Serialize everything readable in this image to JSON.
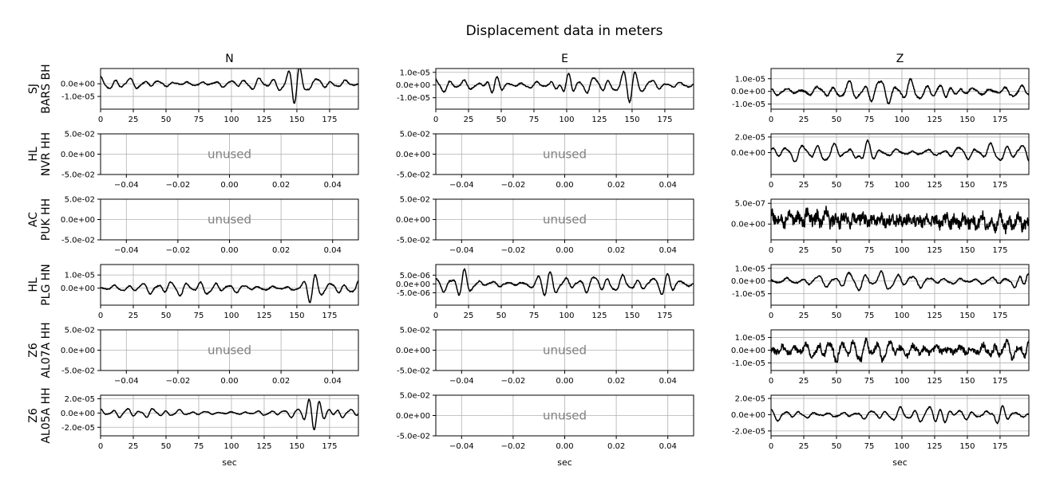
{
  "title": "Displacement data in meters",
  "columns": [
    "N",
    "E",
    "Z"
  ],
  "xlabel": "sec",
  "unused_label": "unused",
  "colors": {
    "trace": "#000000",
    "grid": "#b0b0b0",
    "unused_text": "#808080"
  },
  "chart_data": {
    "type": "line",
    "title": "Displacement data in meters",
    "xlabel": "sec",
    "grid": true,
    "rows": [
      {
        "station": "SJ\nBARS BH",
        "panels": [
          {
            "component": "N",
            "used": true,
            "xlim": [
              0,
              197
            ],
            "ylim": [
              -2e-05,
              1.2e-05
            ],
            "xticks": [
              0,
              25,
              50,
              75,
              100,
              125,
              150,
              175
            ],
            "xtick_labels": [
              "0",
              "25",
              "50",
              "75",
              "100",
              "125",
              "150",
              "175"
            ],
            "yticks": [
              0,
              -1e-05
            ],
            "ytick_labels": [
              "0.0e+00",
              "-1.0e-05"
            ],
            "trace": {
              "seed": 11,
              "amp": 5e-06,
              "period": 11,
              "events": [
                [
                  150,
                  1.4e-05,
                  6
                ]
              ],
              "noise": 0.08
            }
          },
          {
            "component": "E",
            "used": true,
            "xlim": [
              0,
              197
            ],
            "ylim": [
              -1.9e-05,
              1.3e-05
            ],
            "xticks": [
              0,
              25,
              50,
              75,
              100,
              125,
              150,
              175
            ],
            "xtick_labels": [
              "0",
              "25",
              "50",
              "75",
              "100",
              "125",
              "150",
              "175"
            ],
            "yticks": [
              1e-05,
              0,
              -1e-05
            ],
            "ytick_labels": [
              "1.0e-05",
              "0.0e+00",
              "-1.0e-05"
            ],
            "trace": {
              "seed": 23,
              "amp": 6e-06,
              "period": 11,
              "events": [
                [
                  45,
                  8e-06,
                  6
                ],
                [
                  100,
                  8e-06,
                  6
                ],
                [
                  150,
                  1.2e-05,
                  6
                ]
              ],
              "noise": 0.08
            }
          },
          {
            "component": "Z",
            "used": true,
            "xlim": [
              0,
              197
            ],
            "ylim": [
              -1.4e-05,
              1.8e-05
            ],
            "xticks": [
              0,
              25,
              50,
              75,
              100,
              125,
              150,
              175
            ],
            "xtick_labels": [
              "0",
              "25",
              "50",
              "75",
              "100",
              "125",
              "150",
              "175"
            ],
            "yticks": [
              1e-05,
              0,
              -1e-05
            ],
            "ytick_labels": [
              "1.0e-05",
              "0.0e+00",
              "-1.0e-05"
            ],
            "trace": {
              "seed": 37,
              "amp": 9e-06,
              "period": 12,
              "events": [
                [
                  135,
                  8e-06,
                  6
                ]
              ],
              "noise": 0.08
            }
          }
        ]
      },
      {
        "station": "HL\nNVR HH",
        "panels": [
          {
            "component": "N",
            "used": false,
            "xlim": [
              -0.05,
              0.05
            ],
            "ylim": [
              -0.05,
              0.05
            ],
            "xticks": [
              -0.04,
              -0.02,
              0,
              0.02,
              0.04
            ],
            "xtick_labels": [
              "−0.04",
              "−0.02",
              "0.00",
              "0.02",
              "0.04"
            ],
            "yticks": [
              0.05,
              0,
              -0.05
            ],
            "ytick_labels": [
              "5.0e-02",
              "0.0e+00",
              "-5.0e-02"
            ]
          },
          {
            "component": "E",
            "used": false,
            "xlim": [
              -0.05,
              0.05
            ],
            "ylim": [
              -0.05,
              0.05
            ],
            "xticks": [
              -0.04,
              -0.02,
              0,
              0.02,
              0.04
            ],
            "xtick_labels": [
              "−0.04",
              "−0.02",
              "0.00",
              "0.02",
              "0.04"
            ],
            "yticks": [
              0.05,
              0,
              -0.05
            ],
            "ytick_labels": [
              "5.0e-02",
              "0.0e+00",
              "-5.0e-02"
            ]
          },
          {
            "component": "Z",
            "used": true,
            "xlim": [
              0,
              197
            ],
            "ylim": [
              -2.8e-05,
              2.4e-05
            ],
            "xticks": [
              0,
              25,
              50,
              75,
              100,
              125,
              150,
              175
            ],
            "xtick_labels": [
              "0",
              "25",
              "50",
              "75",
              "100",
              "125",
              "150",
              "175"
            ],
            "yticks": [
              2e-05,
              0
            ],
            "ytick_labels": [
              "2.0e-05",
              "0.0e+00"
            ],
            "trace": {
              "seed": 41,
              "amp": 1.1e-05,
              "period": 12,
              "events": [
                [
                  72,
                  1.2e-05,
                  6
                ]
              ],
              "noise": 0.08
            }
          }
        ]
      },
      {
        "station": "AC\nPUK HH",
        "panels": [
          {
            "component": "N",
            "used": false,
            "xlim": [
              -0.05,
              0.05
            ],
            "ylim": [
              -0.05,
              0.05
            ],
            "xticks": [
              -0.04,
              -0.02,
              0,
              0.02,
              0.04
            ],
            "xtick_labels": [
              "−0.04",
              "−0.02",
              "0.00",
              "0.02",
              "0.04"
            ],
            "yticks": [
              0.05,
              0,
              -0.05
            ],
            "ytick_labels": [
              "5.0e-02",
              "0.0e+00",
              "-5.0e-02"
            ]
          },
          {
            "component": "E",
            "used": false,
            "xlim": [
              -0.05,
              0.05
            ],
            "ylim": [
              -0.05,
              0.05
            ],
            "xticks": [
              -0.04,
              -0.02,
              0,
              0.02,
              0.04
            ],
            "xtick_labels": [
              "−0.04",
              "−0.02",
              "0.00",
              "0.02",
              "0.04"
            ],
            "yticks": [
              0.05,
              0,
              -0.05
            ],
            "ytick_labels": [
              "5.0e-02",
              "0.0e+00",
              "-5.0e-02"
            ]
          },
          {
            "component": "Z",
            "used": true,
            "xlim": [
              0,
              197
            ],
            "ylim": [
              -3.8e-07,
              6e-07
            ],
            "xticks": [
              0,
              25,
              50,
              75,
              100,
              125,
              150,
              175
            ],
            "xtick_labels": [
              "0",
              "25",
              "50",
              "75",
              "100",
              "125",
              "150",
              "175"
            ],
            "yticks": [
              5e-07,
              0
            ],
            "ytick_labels": [
              "5.0e-07",
              "0.0e+00"
            ],
            "trace": {
              "seed": 53,
              "amp": 1.6e-07,
              "period": 7,
              "offset": 1.5e-07,
              "drift": -1.2e-07,
              "events": [],
              "noise": 0.9
            }
          }
        ]
      },
      {
        "station": "HL\nPLG HN",
        "panels": [
          {
            "component": "N",
            "used": true,
            "xlim": [
              0,
              197
            ],
            "ylim": [
              -1.3e-05,
              1.8e-05
            ],
            "xticks": [
              0,
              25,
              50,
              75,
              100,
              125,
              150,
              175
            ],
            "xtick_labels": [
              "0",
              "25",
              "50",
              "75",
              "100",
              "125",
              "150",
              "175"
            ],
            "yticks": [
              1e-05,
              0
            ],
            "ytick_labels": [
              "1.0e-05",
              "0.0e+00"
            ],
            "trace": {
              "seed": 61,
              "amp": 5e-06,
              "period": 11,
              "events": [
                [
                  162,
                  1.1e-05,
                  6
                ]
              ],
              "noise": 0.08
            }
          },
          {
            "component": "E",
            "used": true,
            "xlim": [
              0,
              197
            ],
            "ylim": [
              -1.2e-05,
              1.1e-05
            ],
            "xticks": [
              0,
              25,
              50,
              75,
              100,
              125,
              150,
              175
            ],
            "xtick_labels": [
              "0",
              "25",
              "50",
              "75",
              "100",
              "125",
              "150",
              "175"
            ],
            "yticks": [
              5e-06,
              0,
              -5e-06
            ],
            "ytick_labels": [
              "5.0e-06",
              "0.0e+00",
              "-5.0e-06"
            ],
            "trace": {
              "seed": 67,
              "amp": 4.5e-06,
              "period": 11,
              "events": [
                [
                  20,
                  6e-06,
                  6
                ],
                [
                  85,
                  6e-06,
                  8
                ],
                [
                  175,
                  6e-06,
                  6
                ]
              ],
              "noise": 0.08
            }
          },
          {
            "component": "Z",
            "used": true,
            "xlim": [
              0,
              197
            ],
            "ylim": [
              -1.9e-05,
              1.3e-05
            ],
            "xticks": [
              0,
              25,
              50,
              75,
              100,
              125,
              150,
              175
            ],
            "xtick_labels": [
              "0",
              "25",
              "50",
              "75",
              "100",
              "125",
              "150",
              "175"
            ],
            "yticks": [
              1e-05,
              0,
              -1e-05
            ],
            "ytick_labels": [
              "1.0e-05",
              "0.0e+00",
              "-1.0e-05"
            ],
            "trace": {
              "seed": 71,
              "amp": 7e-06,
              "period": 12,
              "events": [
                [
                  195,
                  8e-06,
                  5
                ]
              ],
              "noise": 0.08
            }
          }
        ]
      },
      {
        "station": "Z6\nAL07A HH",
        "panels": [
          {
            "component": "N",
            "used": false,
            "xlim": [
              -0.05,
              0.05
            ],
            "ylim": [
              -0.05,
              0.05
            ],
            "xticks": [
              -0.04,
              -0.02,
              0,
              0.02,
              0.04
            ],
            "xtick_labels": [
              "−0.04",
              "−0.02",
              "0.00",
              "0.02",
              "0.04"
            ],
            "yticks": [
              0.05,
              0,
              -0.05
            ],
            "ytick_labels": [
              "5.0e-02",
              "0.0e+00",
              "-5.0e-02"
            ]
          },
          {
            "component": "E",
            "used": false,
            "xlim": [
              -0.05,
              0.05
            ],
            "ylim": [
              -0.05,
              0.05
            ],
            "xticks": [
              -0.04,
              -0.02,
              0,
              0.02,
              0.04
            ],
            "xtick_labels": [
              "−0.04",
              "−0.02",
              "0.00",
              "0.02",
              "0.04"
            ],
            "yticks": [
              0.05,
              0,
              -0.05
            ],
            "ytick_labels": [
              "5.0e-02",
              "0.0e+00",
              "-5.0e-02"
            ]
          },
          {
            "component": "Z",
            "used": true,
            "xlim": [
              0,
              197
            ],
            "ylim": [
              -1.6e-05,
              1.6e-05
            ],
            "xticks": [
              0,
              25,
              50,
              75,
              100,
              125,
              150,
              175
            ],
            "xtick_labels": [
              "0",
              "25",
              "50",
              "75",
              "100",
              "125",
              "150",
              "175"
            ],
            "yticks": [
              1e-05,
              0,
              -1e-05
            ],
            "ytick_labels": [
              "1.0e-05",
              "0.0e+00",
              "-1.0e-05"
            ],
            "trace": {
              "seed": 83,
              "amp": 8e-06,
              "period": 9,
              "events": [],
              "noise": 0.3
            }
          }
        ]
      },
      {
        "station": "Z6\nAL05A HH",
        "panels": [
          {
            "component": "N",
            "used": true,
            "xlim": [
              0,
              197
            ],
            "ylim": [
              -3.2e-05,
              2.5e-05
            ],
            "xticks": [
              0,
              25,
              50,
              75,
              100,
              125,
              150,
              175
            ],
            "xtick_labels": [
              "0",
              "25",
              "50",
              "75",
              "100",
              "125",
              "150",
              "175"
            ],
            "yticks": [
              2e-05,
              0,
              -2e-05
            ],
            "ytick_labels": [
              "2.0e-05",
              "0.0e+00",
              "-2.0e-05"
            ],
            "trace": {
              "seed": 97,
              "amp": 6e-06,
              "period": 10,
              "events": [
                [
                  165,
                  2.2e-05,
                  9
                ]
              ],
              "noise": 0.08
            }
          },
          {
            "component": "E",
            "used": false,
            "xlim": [
              -0.05,
              0.05
            ],
            "ylim": [
              -0.05,
              0.05
            ],
            "xticks": [
              -0.04,
              -0.02,
              0,
              0.02,
              0.04
            ],
            "xtick_labels": [
              "−0.04",
              "−0.02",
              "0.00",
              "0.02",
              "0.04"
            ],
            "yticks": [
              0.05,
              0,
              -0.05
            ],
            "ytick_labels": [
              "5.0e-02",
              "0.0e+00",
              "-5.0e-02"
            ]
          },
          {
            "component": "Z",
            "used": true,
            "xlim": [
              0,
              197
            ],
            "ylim": [
              -2.6e-05,
              2.4e-05
            ],
            "xticks": [
              0,
              25,
              50,
              75,
              100,
              125,
              150,
              175
            ],
            "xtick_labels": [
              "0",
              "25",
              "50",
              "75",
              "100",
              "125",
              "150",
              "175"
            ],
            "yticks": [
              2e-05,
              0,
              -2e-05
            ],
            "ytick_labels": [
              "2.0e-05",
              "0.0e+00",
              "-2.0e-05"
            ],
            "trace": {
              "seed": 101,
              "amp": 9e-06,
              "period": 11,
              "events": [
                [
                  135,
                  1.2e-05,
                  8
                ],
                [
                  175,
                  1.1e-05,
                  6
                ]
              ],
              "noise": 0.08
            }
          }
        ]
      }
    ]
  }
}
